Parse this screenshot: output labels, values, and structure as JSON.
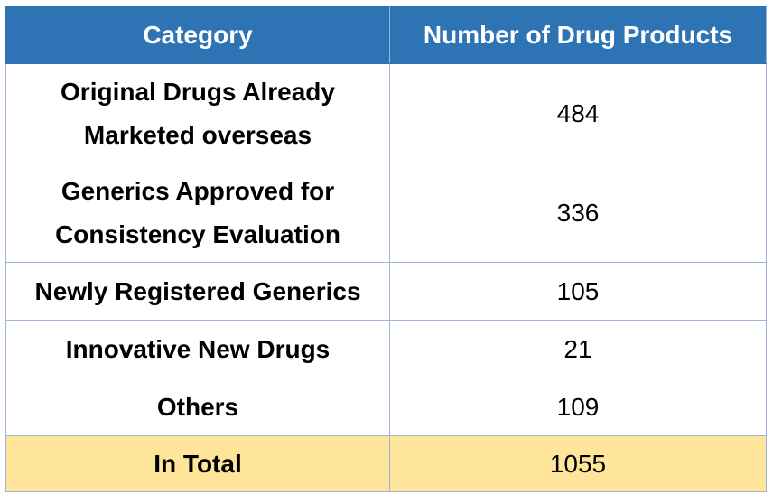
{
  "table": {
    "headers": [
      "Category",
      "Number of Drug Products"
    ],
    "rows": [
      {
        "category": "Original Drugs Already Marketed overseas",
        "count": "484"
      },
      {
        "category": "Generics Approved for Consistency Evaluation",
        "count": "336"
      },
      {
        "category": "Newly Registered Generics",
        "count": "105"
      },
      {
        "category": "Innovative New Drugs",
        "count": "21"
      },
      {
        "category": "Others",
        "count": "109"
      }
    ],
    "total": {
      "label": "In Total",
      "count": "1055"
    }
  },
  "colors": {
    "header_bg": "#2e74b5",
    "header_text": "#ffffff",
    "border": "#9cb3dc",
    "total_bg": "#ffe599"
  }
}
